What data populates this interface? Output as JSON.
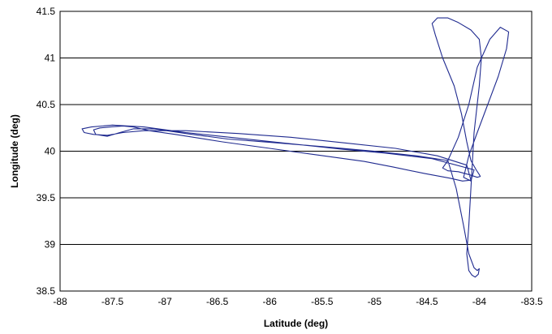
{
  "chart_data": {
    "type": "line",
    "title": "",
    "xlabel": "Latitude (deg)",
    "ylabel": "Longitude (deg)",
    "xlim": [
      -88,
      -83.5
    ],
    "ylim": [
      38.5,
      41.5
    ],
    "xticks": [
      -88,
      -87.5,
      -87,
      -86.5,
      -86,
      -85.5,
      -85,
      -84.5,
      -84,
      -83.5
    ],
    "xtick_labels": [
      "-88",
      "-87.5",
      "-87",
      "-86.5",
      "-86",
      "-85.5",
      "-85",
      "-84.5",
      "-84",
      "-83.5"
    ],
    "yticks": [
      38.5,
      39,
      39.5,
      40,
      40.5,
      41,
      41.5
    ],
    "ytick_labels": [
      "38.5",
      "39",
      "39.5",
      "40",
      "40.5",
      "41",
      "41.5"
    ],
    "grid": {
      "horizontal": true,
      "vertical": false
    },
    "legend": "none",
    "series": [
      {
        "color": "#1f2a8f",
        "x": [
          -84.08,
          -84.16,
          -84.28,
          -84.52,
          -84.82,
          -85.1,
          -85.55,
          -86.0,
          -86.45,
          -86.9,
          -87.15,
          -87.3,
          -87.4,
          -87.52,
          -87.62,
          -87.68,
          -87.66,
          -87.55,
          -87.43,
          -87.3,
          -87.1,
          -86.8,
          -86.4,
          -85.95,
          -85.5,
          -85.0,
          -84.6,
          -84.3,
          -84.22,
          -84.15,
          -84.1,
          -84.05,
          -84.02,
          -84.0,
          -84.01,
          -84.04,
          -84.07,
          -84.1,
          -84.12,
          -84.1,
          -84.08,
          -84.05,
          -84.0,
          -83.98,
          -84.0,
          -84.08,
          -84.2,
          -84.3,
          -84.4,
          -84.45,
          -84.42,
          -84.35,
          -84.24,
          -84.17,
          -84.12,
          -84.08,
          -84.03,
          -84.0,
          -83.99,
          -84.02,
          -84.1,
          -84.2,
          -84.3,
          -84.35,
          -84.3,
          -84.2,
          -84.1,
          -84.02,
          -83.9,
          -83.8,
          -83.72,
          -83.74,
          -83.82,
          -83.92,
          -84.02,
          -84.1,
          -84.15,
          -84.08,
          -84.05,
          -84.45,
          -84.9,
          -85.3,
          -85.8,
          -86.3,
          -86.8,
          -87.2,
          -87.5,
          -87.7,
          -87.79,
          -87.77,
          -87.68,
          -87.55,
          -87.4,
          -87.2,
          -86.8,
          -86.3,
          -85.8,
          -85.3,
          -84.8,
          -84.4,
          -84.12,
          -84.08
        ],
        "y": [
          39.69,
          39.68,
          39.71,
          39.76,
          39.83,
          39.89,
          39.96,
          40.03,
          40.1,
          40.18,
          40.22,
          40.26,
          40.27,
          40.26,
          40.25,
          40.23,
          40.18,
          40.16,
          40.2,
          40.24,
          40.24,
          40.19,
          40.13,
          40.09,
          40.05,
          40.0,
          39.95,
          39.9,
          39.6,
          39.2,
          38.9,
          38.75,
          38.72,
          38.74,
          38.68,
          38.65,
          38.67,
          38.72,
          38.9,
          39.2,
          39.6,
          40.2,
          40.7,
          41.0,
          41.2,
          41.3,
          41.38,
          41.43,
          41.43,
          41.37,
          41.25,
          41.0,
          40.7,
          40.4,
          40.1,
          39.9,
          39.8,
          39.75,
          39.73,
          39.72,
          39.75,
          39.78,
          39.79,
          39.82,
          39.9,
          40.15,
          40.5,
          40.9,
          41.2,
          41.33,
          41.28,
          41.1,
          40.8,
          40.5,
          40.2,
          39.95,
          39.72,
          39.68,
          39.8,
          39.92,
          39.98,
          40.02,
          40.08,
          40.14,
          40.2,
          40.26,
          40.28,
          40.26,
          40.24,
          40.2,
          40.18,
          40.17,
          40.2,
          40.22,
          40.22,
          40.19,
          40.15,
          40.09,
          40.03,
          39.95,
          39.85,
          39.69
        ]
      }
    ]
  }
}
